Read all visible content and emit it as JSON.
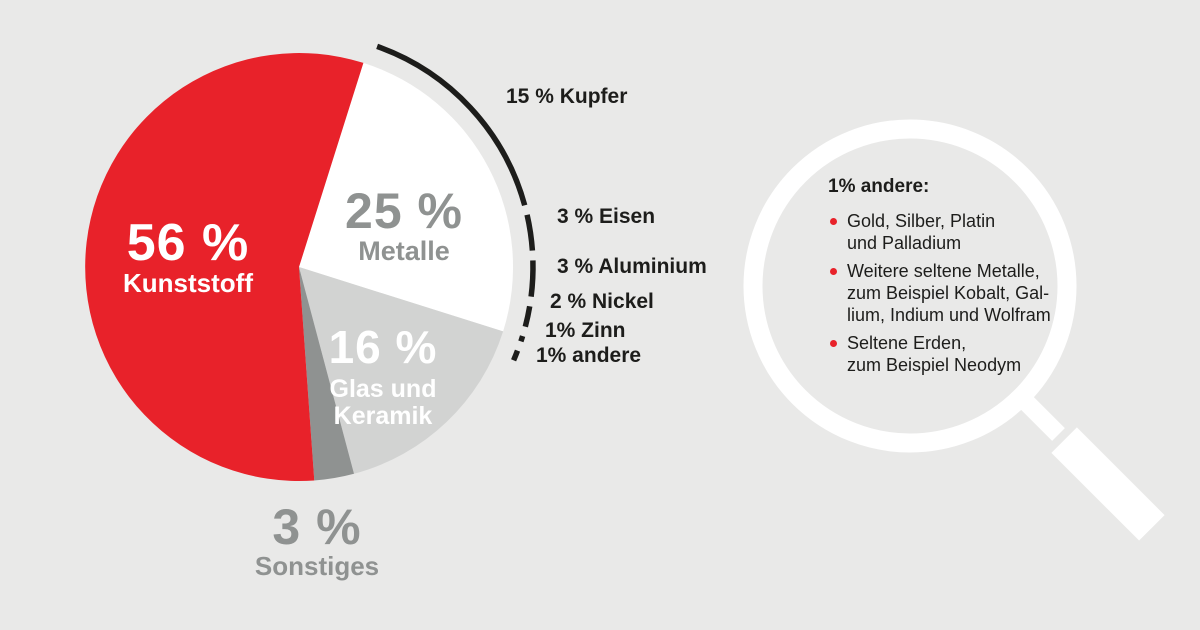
{
  "background": "#e9e9e8",
  "colors": {
    "red": "#e8222a",
    "gray-dark": "#8f9291",
    "gray-light": "#d2d3d2",
    "ink": "#1d1d1b",
    "white": "#ffffff"
  },
  "chart_data": {
    "type": "pie",
    "unit": "%",
    "start_angle_deg": 17.5,
    "slices": [
      {
        "label": "Metalle",
        "value": 25,
        "pct_label": "25 %",
        "color": "#ffffff",
        "label_lines": [
          "Metalle"
        ]
      },
      {
        "label": "Glas und Keramik",
        "value": 16,
        "pct_label": "16 %",
        "color": "#d2d3d2",
        "label_lines": [
          "Glas und",
          "Keramik"
        ]
      },
      {
        "label": "Sonstiges",
        "value": 3,
        "pct_label": "3 %",
        "color": "#8f9291",
        "label_lines": [
          "Sonstiges"
        ]
      },
      {
        "label": "Kunststoff",
        "value": 56,
        "pct_label": "56 %",
        "color": "#e8222a",
        "label_lines": [
          "Kunststoff"
        ]
      }
    ],
    "metalle_breakdown": {
      "total": 25,
      "segments": [
        {
          "label": "15 % Kupfer",
          "value": 15
        },
        {
          "label": "3 % Eisen",
          "value": 3
        },
        {
          "label": "3 % Aluminium",
          "value": 3
        },
        {
          "label": "2 % Nickel",
          "value": 2
        },
        {
          "label": "1% Zinn",
          "value": 1
        },
        {
          "label": "1% andere",
          "value": 1
        }
      ]
    }
  },
  "magnifier": {
    "title": "1% andere:",
    "items": [
      {
        "lines": [
          "Gold, Silber, Platin",
          "und Palladium"
        ]
      },
      {
        "lines": [
          "Weitere seltene Metalle,",
          "zum Beispiel Kobalt, Gal-",
          "lium, Indium und Wolfram"
        ]
      },
      {
        "lines": [
          "Seltene Erden,",
          "zum Beispiel Neodym"
        ]
      }
    ]
  }
}
